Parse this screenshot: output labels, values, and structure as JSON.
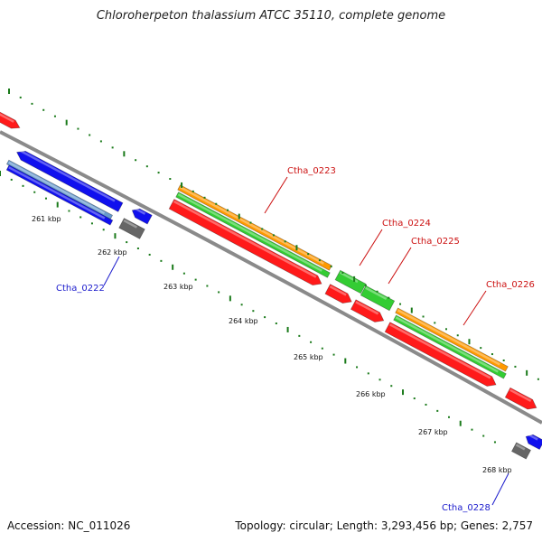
{
  "title": "Chloroherpeton thalassium ATCC 35110, complete genome",
  "footer": {
    "accession": "Accession: NC_011026",
    "summary": "Topology: circular; Length: 3,293,456 bp; Genes: 2,757"
  },
  "scale_labels": [
    "261 kbp",
    "262 kbp",
    "263 kbp",
    "264 kbp",
    "265 kbp",
    "266 kbp",
    "267 kbp",
    "268 kbp"
  ],
  "gene_labels": [
    {
      "text": "Ctha_0222",
      "color": "#1a1acc"
    },
    {
      "text": "Ctha_0223",
      "color": "#cc1111"
    },
    {
      "text": "Ctha_0224",
      "color": "#cc1111"
    },
    {
      "text": "Ctha_0225",
      "color": "#cc1111"
    },
    {
      "text": "Ctha_0226",
      "color": "#cc1111"
    },
    {
      "text": "Ctha_0228",
      "color": "#1a1acc"
    }
  ],
  "colors": {
    "backbone": "#8a8a8a",
    "cds_forward": "#ff1a1a",
    "cds_reverse": "#1010ee",
    "gene_generic": "#666666",
    "orange_feature": "#ff9900",
    "green_feature": "#33cc33",
    "light_blue_feature": "#6699cc",
    "tick": "#1a7a1a"
  }
}
